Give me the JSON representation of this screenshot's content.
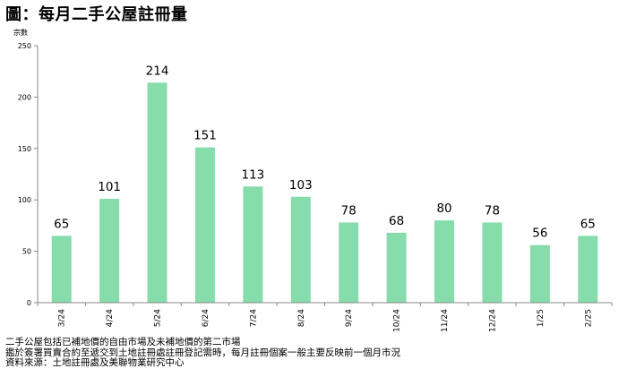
{
  "header": {
    "title": "圖：每月二手公屋註冊量"
  },
  "chart_data": {
    "type": "bar",
    "title": "圖：每月二手公屋註冊量",
    "ylabel": "宗數",
    "xlabel": "",
    "ylim": [
      0,
      250
    ],
    "yticks": [
      0,
      50,
      100,
      150,
      200,
      250
    ],
    "categories": [
      "3/24",
      "4/24",
      "5/24",
      "6/24",
      "7/24",
      "8/24",
      "9/24",
      "10/24",
      "11/24",
      "12/24",
      "1/25",
      "2/25"
    ],
    "values": [
      65,
      101,
      214,
      151,
      113,
      103,
      78,
      68,
      80,
      78,
      56,
      65
    ],
    "bar_color": "#86dcaa",
    "grid": false,
    "legend": "none"
  },
  "notes": {
    "line1": "二手公屋包括已補地價的自由市場及未補地價的第二市場",
    "line2": "鑑於簽署買賣合約至遞交到土地註冊處註冊登記需時，每月註冊個案一般主要反映前一個月市況",
    "line3": "資料來源：土地註冊處及美聯物業研究中心"
  }
}
